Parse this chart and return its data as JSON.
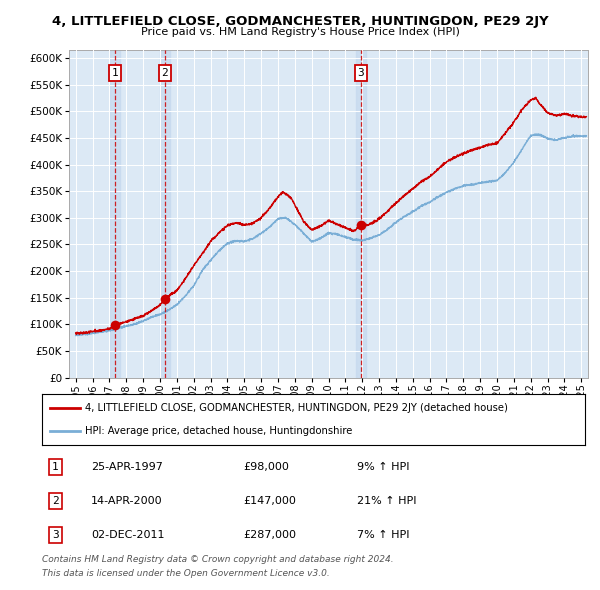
{
  "title": "4, LITTLEFIELD CLOSE, GODMANCHESTER, HUNTINGDON, PE29 2JY",
  "subtitle": "Price paid vs. HM Land Registry's House Price Index (HPI)",
  "yticks": [
    0,
    50000,
    100000,
    150000,
    200000,
    250000,
    300000,
    350000,
    400000,
    450000,
    500000,
    550000,
    600000
  ],
  "xlim": [
    1994.6,
    2025.4
  ],
  "ylim": [
    0,
    615000
  ],
  "bg_color": "#dce9f5",
  "grid_color": "#ffffff",
  "sale_points": [
    {
      "year": 1997.32,
      "price": 98000,
      "label": "1",
      "date": "25-APR-1997",
      "pct": "9%"
    },
    {
      "year": 2000.29,
      "price": 147000,
      "label": "2",
      "date": "14-APR-2000",
      "pct": "21%"
    },
    {
      "year": 2011.92,
      "price": 287000,
      "label": "3",
      "date": "02-DEC-2011",
      "pct": "7%"
    }
  ],
  "legend_line1": "4, LITTLEFIELD CLOSE, GODMANCHESTER, HUNTINGDON, PE29 2JY (detached house)",
  "legend_line2": "HPI: Average price, detached house, Huntingdonshire",
  "footer1": "Contains HM Land Registry data © Crown copyright and database right 2024.",
  "footer2": "This data is licensed under the Open Government Licence v3.0.",
  "red_color": "#cc0000",
  "blue_color": "#7aaed6",
  "sale_box_color": "#cc0000",
  "hpi_anchors": [
    [
      1995.0,
      80000
    ],
    [
      1995.5,
      81000
    ],
    [
      1996.0,
      83000
    ],
    [
      1996.5,
      86000
    ],
    [
      1997.0,
      88000
    ],
    [
      1997.5,
      92000
    ],
    [
      1998.0,
      96000
    ],
    [
      1998.5,
      100000
    ],
    [
      1999.0,
      106000
    ],
    [
      1999.5,
      113000
    ],
    [
      2000.0,
      118000
    ],
    [
      2000.5,
      126000
    ],
    [
      2001.0,
      136000
    ],
    [
      2001.5,
      152000
    ],
    [
      2002.0,
      172000
    ],
    [
      2002.5,
      200000
    ],
    [
      2003.0,
      220000
    ],
    [
      2003.5,
      238000
    ],
    [
      2004.0,
      252000
    ],
    [
      2004.5,
      256000
    ],
    [
      2005.0,
      255000
    ],
    [
      2005.5,
      260000
    ],
    [
      2006.0,
      270000
    ],
    [
      2006.5,
      282000
    ],
    [
      2007.0,
      298000
    ],
    [
      2007.5,
      300000
    ],
    [
      2008.0,
      288000
    ],
    [
      2008.5,
      272000
    ],
    [
      2009.0,
      256000
    ],
    [
      2009.5,
      262000
    ],
    [
      2010.0,
      272000
    ],
    [
      2010.5,
      270000
    ],
    [
      2011.0,
      265000
    ],
    [
      2011.5,
      260000
    ],
    [
      2012.0,
      258000
    ],
    [
      2012.5,
      262000
    ],
    [
      2013.0,
      268000
    ],
    [
      2013.5,
      278000
    ],
    [
      2014.0,
      292000
    ],
    [
      2014.5,
      302000
    ],
    [
      2015.0,
      312000
    ],
    [
      2015.5,
      322000
    ],
    [
      2016.0,
      330000
    ],
    [
      2016.5,
      340000
    ],
    [
      2017.0,
      348000
    ],
    [
      2017.5,
      355000
    ],
    [
      2018.0,
      360000
    ],
    [
      2018.5,
      362000
    ],
    [
      2019.0,
      365000
    ],
    [
      2019.5,
      368000
    ],
    [
      2020.0,
      370000
    ],
    [
      2020.5,
      385000
    ],
    [
      2021.0,
      405000
    ],
    [
      2021.5,
      430000
    ],
    [
      2022.0,
      455000
    ],
    [
      2022.5,
      458000
    ],
    [
      2023.0,
      450000
    ],
    [
      2023.5,
      448000
    ],
    [
      2024.0,
      452000
    ],
    [
      2024.5,
      455000
    ],
    [
      2025.0,
      455000
    ]
  ],
  "price_anchors": [
    [
      1995.0,
      83000
    ],
    [
      1995.5,
      84500
    ],
    [
      1996.0,
      86000
    ],
    [
      1996.5,
      89000
    ],
    [
      1997.0,
      92000
    ],
    [
      1997.32,
      98000
    ],
    [
      1997.5,
      100000
    ],
    [
      1998.0,
      105000
    ],
    [
      1998.5,
      110000
    ],
    [
      1999.0,
      116000
    ],
    [
      1999.5,
      126000
    ],
    [
      2000.0,
      135000
    ],
    [
      2000.29,
      147000
    ],
    [
      2000.5,
      152000
    ],
    [
      2001.0,
      162000
    ],
    [
      2001.5,
      185000
    ],
    [
      2002.0,
      210000
    ],
    [
      2002.5,
      232000
    ],
    [
      2003.0,
      255000
    ],
    [
      2003.5,
      272000
    ],
    [
      2004.0,
      285000
    ],
    [
      2004.5,
      290000
    ],
    [
      2005.0,
      286000
    ],
    [
      2005.5,
      290000
    ],
    [
      2006.0,
      300000
    ],
    [
      2006.5,
      318000
    ],
    [
      2007.0,
      340000
    ],
    [
      2007.3,
      350000
    ],
    [
      2007.5,
      345000
    ],
    [
      2007.8,
      338000
    ],
    [
      2008.0,
      325000
    ],
    [
      2008.3,
      308000
    ],
    [
      2008.5,
      295000
    ],
    [
      2009.0,
      278000
    ],
    [
      2009.5,
      285000
    ],
    [
      2010.0,
      295000
    ],
    [
      2010.5,
      288000
    ],
    [
      2011.0,
      282000
    ],
    [
      2011.5,
      275000
    ],
    [
      2011.92,
      287000
    ],
    [
      2012.0,
      285000
    ],
    [
      2012.5,
      290000
    ],
    [
      2013.0,
      298000
    ],
    [
      2013.5,
      312000
    ],
    [
      2014.0,
      328000
    ],
    [
      2014.5,
      342000
    ],
    [
      2015.0,
      355000
    ],
    [
      2015.5,
      368000
    ],
    [
      2016.0,
      378000
    ],
    [
      2016.5,
      392000
    ],
    [
      2017.0,
      405000
    ],
    [
      2017.5,
      415000
    ],
    [
      2018.0,
      422000
    ],
    [
      2018.5,
      428000
    ],
    [
      2019.0,
      432000
    ],
    [
      2019.5,
      438000
    ],
    [
      2020.0,
      440000
    ],
    [
      2020.5,
      460000
    ],
    [
      2021.0,
      480000
    ],
    [
      2021.5,
      505000
    ],
    [
      2022.0,
      522000
    ],
    [
      2022.3,
      525000
    ],
    [
      2022.5,
      515000
    ],
    [
      2022.8,
      505000
    ],
    [
      2023.0,
      498000
    ],
    [
      2023.5,
      492000
    ],
    [
      2024.0,
      495000
    ],
    [
      2024.5,
      492000
    ],
    [
      2025.0,
      490000
    ]
  ]
}
